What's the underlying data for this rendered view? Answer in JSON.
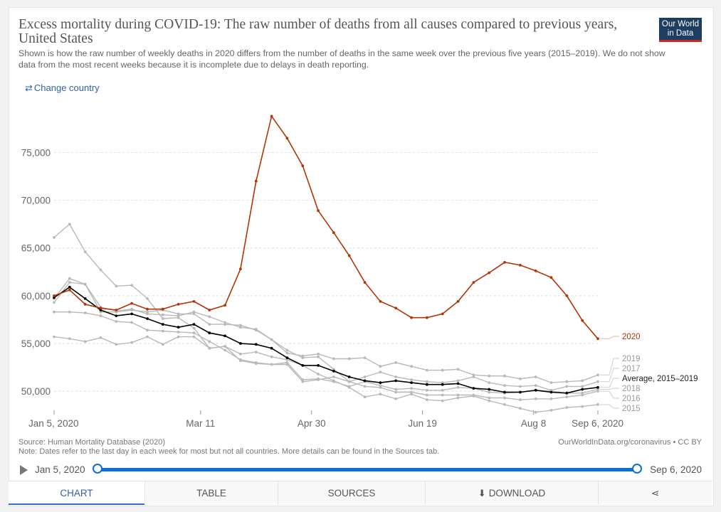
{
  "header": {
    "title": "Excess mortality during COVID-19: The raw number of deaths from all causes compared to previous years, United States",
    "subtitle": "Shown is how the raw number of weekly deaths in 2020 differs from the number of deaths in the same week over the previous five years (2015–2019). We do not show data from the most recent weeks because it is incomplete due to delays in death reporting.",
    "logo_line1": "Our World",
    "logo_line2": "in Data",
    "change_country": "Change country"
  },
  "colors": {
    "y2020": "#b13507",
    "average": "#000000",
    "previous_years": "#b9b9b9",
    "grid": "#dddddd",
    "accent": "#0b6fd6",
    "tab_active": "#3360a9"
  },
  "chart_data": {
    "type": "line",
    "x": [
      "2020-01-05",
      "2020-01-12",
      "2020-01-19",
      "2020-01-26",
      "2020-02-02",
      "2020-02-09",
      "2020-02-16",
      "2020-02-23",
      "2020-03-01",
      "2020-03-08",
      "2020-03-15",
      "2020-03-22",
      "2020-03-29",
      "2020-04-05",
      "2020-04-12",
      "2020-04-19",
      "2020-04-26",
      "2020-05-03",
      "2020-05-10",
      "2020-05-17",
      "2020-05-24",
      "2020-05-31",
      "2020-06-07",
      "2020-06-14",
      "2020-06-21",
      "2020-06-28",
      "2020-07-05",
      "2020-07-12",
      "2020-07-19",
      "2020-07-26",
      "2020-08-02",
      "2020-08-09",
      "2020-08-16",
      "2020-08-23",
      "2020-08-30",
      "2020-09-06"
    ],
    "x_ticks": [
      "Jan 5, 2020",
      "Mar 11",
      "Apr 30",
      "Jun 19",
      "Aug 8",
      "Sep 6, 2020"
    ],
    "x_tick_dates": [
      "2020-01-05",
      "2020-03-11",
      "2020-04-30",
      "2020-06-19",
      "2020-08-08",
      "2020-09-06"
    ],
    "y_ticks": [
      50000,
      55000,
      60000,
      65000,
      70000,
      75000
    ],
    "y_tick_labels": [
      "50,000",
      "55,000",
      "60,000",
      "65,000",
      "70,000",
      "75,000"
    ],
    "ylim": [
      48000,
      79500
    ],
    "series": [
      {
        "name": "2015",
        "values": [
          55700,
          55500,
          55200,
          55600,
          54900,
          55100,
          55700,
          54900,
          55700,
          55700,
          54500,
          54700,
          53900,
          54100,
          53600,
          53300,
          52700,
          51800,
          51100,
          50400,
          49400,
          49700,
          49200,
          49700,
          49100,
          49000,
          49300,
          49500,
          49000,
          48600,
          48200,
          47800,
          48000,
          48300,
          48400,
          48600
        ]
      },
      {
        "name": "2016",
        "values": [
          58300,
          58300,
          58200,
          57900,
          57300,
          57200,
          56400,
          56300,
          56200,
          56100,
          55200,
          54300,
          53300,
          53000,
          52800,
          52800,
          51000,
          51200,
          51500,
          51000,
          50500,
          50400,
          49900,
          49900,
          49600,
          49600,
          49600,
          49600,
          49300,
          49300,
          49100,
          49200,
          49200,
          49400,
          49600,
          50000
        ]
      },
      {
        "name": "2017",
        "values": [
          59300,
          61400,
          61200,
          58800,
          58400,
          58600,
          58100,
          58000,
          57900,
          58300,
          57800,
          57200,
          56700,
          56500,
          55400,
          54300,
          53500,
          53600,
          52300,
          51000,
          51500,
          52000,
          51500,
          51200,
          51000,
          50900,
          51100,
          51500,
          50900,
          50600,
          50500,
          50600,
          50100,
          50500,
          50500,
          51000
        ]
      },
      {
        "name": "2018",
        "values": [
          66100,
          67500,
          64600,
          62700,
          61000,
          61100,
          59700,
          57600,
          57700,
          56600,
          54500,
          54700,
          53200,
          52900,
          52800,
          53000,
          51200,
          51300,
          51000,
          50500,
          51000,
          50600,
          50200,
          50300,
          50100,
          50100,
          50400,
          50300,
          49900,
          49800,
          49900,
          50100,
          50000,
          49800,
          49800,
          50200
        ]
      },
      {
        "name": "2019",
        "values": [
          59700,
          61800,
          61200,
          58300,
          58300,
          58500,
          58300,
          58500,
          58100,
          58100,
          57000,
          57000,
          56900,
          56400,
          55400,
          54000,
          53700,
          53900,
          53400,
          53400,
          53500,
          52600,
          53000,
          52600,
          52200,
          52200,
          52300,
          51700,
          51600,
          51600,
          51300,
          51500,
          50900,
          51000,
          51100,
          51700
        ]
      },
      {
        "name": "Average, 2015–2019",
        "values": [
          59800,
          60900,
          59700,
          58500,
          57900,
          58100,
          57600,
          57000,
          56700,
          57000,
          56100,
          55800,
          55000,
          54900,
          54500,
          53500,
          52700,
          52700,
          52100,
          51500,
          51100,
          50900,
          51100,
          50900,
          50700,
          50700,
          50800,
          50300,
          50200,
          49900,
          49900,
          50100,
          49900,
          49800,
          50200,
          50400
        ]
      },
      {
        "name": "2020",
        "values": [
          60000,
          60600,
          59100,
          58700,
          58500,
          59200,
          58600,
          58600,
          59100,
          59400,
          58500,
          59000,
          62800,
          72000,
          78800,
          76500,
          73600,
          68900,
          66600,
          64200,
          61400,
          59400,
          58700,
          57700,
          57700,
          58100,
          59400,
          61400,
          62400,
          63500,
          63200,
          62600,
          61900,
          60000,
          57400,
          55500
        ]
      }
    ]
  },
  "source": {
    "line1": "Source: Human Mortality Database (2020)",
    "line2": "Note: Dates refer to the last day in each week for most but not all countries. More details can be found in the Sources tab.",
    "right": "OurWorldInData.org/coronavirus • CC BY"
  },
  "timeline": {
    "start": "Jan 5, 2020",
    "end": "Sep 6, 2020"
  },
  "tabs": {
    "chart": "CHART",
    "table": "TABLE",
    "sources": "SOURCES",
    "download": "DOWNLOAD"
  }
}
